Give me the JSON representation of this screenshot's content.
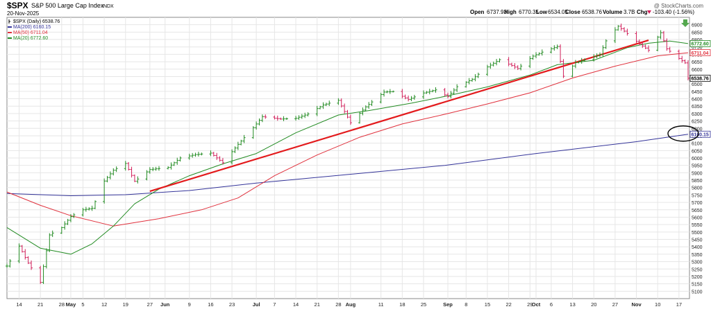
{
  "header": {
    "symbol": "$SPX",
    "name": "S&P 500 Large Cap Index",
    "exchange": "INDX",
    "date": "20-Nov-2025",
    "copyright": "@ StockCharts.com",
    "ohlc": {
      "open_label": "Open",
      "open": "6737.93",
      "high_label": "High",
      "high": "6770.35",
      "low_label": "Low",
      "low": "6534.05",
      "close_label": "Close",
      "close": "6538.76",
      "volume_label": "Volume",
      "volume": "3.7B",
      "chg_label": "Chg",
      "chg": "-103.40 (-1.56%)",
      "chg_icon": "down-triangle"
    }
  },
  "legend": [
    {
      "label": "$SPX (Daily) 6538.76",
      "color": "#000000",
      "icon": "bar-icon"
    },
    {
      "label": "MA(200) 6160.15",
      "color": "#333399"
    },
    {
      "label": "MA(50) 6711.04",
      "color": "#e0303c"
    },
    {
      "label": "MA(20) 6772.60",
      "color": "#228b22"
    }
  ],
  "price_tags": [
    {
      "value": 6772.6,
      "text": "6772.60",
      "color": "#228b22"
    },
    {
      "value": 6711.04,
      "text": "6711.04",
      "color": "#e0303c"
    },
    {
      "value": 6538.76,
      "text": "6538.76",
      "color": "#000000"
    },
    {
      "value": 6160.15,
      "text": "6160.15",
      "color": "#333399"
    }
  ],
  "colors": {
    "up": "#228b22",
    "down": "#d11f5a",
    "ma200": "#333399",
    "ma50": "#e0303c",
    "ma20": "#228b22",
    "trend": "#e31a1c",
    "grid": "#e6e6e6",
    "arrow": "#55a84f"
  },
  "chart_data": {
    "type": "line",
    "ylim": [
      5050,
      6950
    ],
    "y_ticks": [
      5100,
      5150,
      5200,
      5250,
      5300,
      5350,
      5400,
      5450,
      5500,
      5550,
      5600,
      5650,
      5700,
      5750,
      5800,
      5850,
      5900,
      5950,
      6000,
      6050,
      6100,
      6150,
      6200,
      6250,
      6300,
      6350,
      6400,
      6450,
      6500,
      6550,
      6600,
      6650,
      6700,
      6750,
      6800,
      6850,
      6900
    ],
    "x_range": [
      "2025-04-10",
      "2025-11-20"
    ],
    "x_ticks": [
      {
        "date": "2025-04-14",
        "label": "14"
      },
      {
        "date": "2025-04-21",
        "label": "21"
      },
      {
        "date": "2025-04-28",
        "label": "28"
      },
      {
        "date": "2025-05-01",
        "label": "May",
        "bold": true
      },
      {
        "date": "2025-05-05",
        "label": "5"
      },
      {
        "date": "2025-05-12",
        "label": "12"
      },
      {
        "date": "2025-05-19",
        "label": "19"
      },
      {
        "date": "2025-05-27",
        "label": "27"
      },
      {
        "date": "2025-06-01",
        "label": "Jun",
        "bold": true
      },
      {
        "date": "2025-06-09",
        "label": "9"
      },
      {
        "date": "2025-06-16",
        "label": "16"
      },
      {
        "date": "2025-06-23",
        "label": "23"
      },
      {
        "date": "2025-07-01",
        "label": "Jul",
        "bold": true
      },
      {
        "date": "2025-07-07",
        "label": "7"
      },
      {
        "date": "2025-07-14",
        "label": "14"
      },
      {
        "date": "2025-07-21",
        "label": "21"
      },
      {
        "date": "2025-07-28",
        "label": "28"
      },
      {
        "date": "2025-08-01",
        "label": "Aug",
        "bold": true
      },
      {
        "date": "2025-08-11",
        "label": "11"
      },
      {
        "date": "2025-08-18",
        "label": "18"
      },
      {
        "date": "2025-08-25",
        "label": "25"
      },
      {
        "date": "2025-09-02",
        "label": "Sep",
        "bold": true
      },
      {
        "date": "2025-09-08",
        "label": "8"
      },
      {
        "date": "2025-09-15",
        "label": "15"
      },
      {
        "date": "2025-09-22",
        "label": "22"
      },
      {
        "date": "2025-09-29",
        "label": "29"
      },
      {
        "date": "2025-10-01",
        "label": "Oct",
        "bold": true
      },
      {
        "date": "2025-10-06",
        "label": "6"
      },
      {
        "date": "2025-10-13",
        "label": "13"
      },
      {
        "date": "2025-10-20",
        "label": "20"
      },
      {
        "date": "2025-10-27",
        "label": "27"
      },
      {
        "date": "2025-11-03",
        "label": "Nov",
        "bold": true
      },
      {
        "date": "2025-11-10",
        "label": "10"
      },
      {
        "date": "2025-11-17",
        "label": "17"
      }
    ],
    "price": [
      [
        "2025-04-10",
        5270
      ],
      [
        "2025-04-14",
        5405
      ],
      [
        "2025-04-17",
        5290
      ],
      [
        "2025-04-21",
        5160
      ],
      [
        "2025-04-24",
        5480
      ],
      [
        "2025-04-28",
        5530
      ],
      [
        "2025-05-01",
        5604
      ],
      [
        "2025-05-05",
        5650
      ],
      [
        "2025-05-08",
        5660
      ],
      [
        "2025-05-12",
        5844
      ],
      [
        "2025-05-15",
        5917
      ],
      [
        "2025-05-19",
        5963
      ],
      [
        "2025-05-22",
        5842
      ],
      [
        "2025-05-27",
        5922
      ],
      [
        "2025-06-02",
        5936
      ],
      [
        "2025-06-06",
        6000
      ],
      [
        "2025-06-11",
        6023
      ],
      [
        "2025-06-16",
        6033
      ],
      [
        "2025-06-20",
        5968
      ],
      [
        "2025-06-25",
        6092
      ],
      [
        "2025-06-30",
        6205
      ],
      [
        "2025-07-03",
        6279
      ],
      [
        "2025-07-09",
        6263
      ],
      [
        "2025-07-14",
        6268
      ],
      [
        "2025-07-18",
        6297
      ],
      [
        "2025-07-23",
        6358
      ],
      [
        "2025-07-28",
        6389
      ],
      [
        "2025-08-01",
        6238
      ],
      [
        "2025-08-06",
        6345
      ],
      [
        "2025-08-12",
        6445
      ],
      [
        "2025-08-15",
        6449
      ],
      [
        "2025-08-20",
        6395
      ],
      [
        "2025-08-25",
        6439
      ],
      [
        "2025-08-29",
        6460
      ],
      [
        "2025-09-02",
        6415
      ],
      [
        "2025-09-05",
        6481
      ],
      [
        "2025-09-10",
        6532
      ],
      [
        "2025-09-15",
        6615
      ],
      [
        "2025-09-19",
        6664
      ],
      [
        "2025-09-25",
        6604
      ],
      [
        "2025-09-30",
        6688
      ],
      [
        "2025-10-03",
        6715
      ],
      [
        "2025-10-08",
        6753
      ],
      [
        "2025-10-10",
        6552
      ],
      [
        "2025-10-14",
        6644
      ],
      [
        "2025-10-17",
        6664
      ],
      [
        "2025-10-22",
        6699
      ],
      [
        "2025-10-24",
        6791
      ],
      [
        "2025-10-28",
        6890
      ],
      [
        "2025-10-31",
        6840
      ],
      [
        "2025-11-04",
        6771
      ],
      [
        "2025-11-07",
        6728
      ],
      [
        "2025-11-11",
        6846
      ],
      [
        "2025-11-13",
        6737
      ],
      [
        "2025-11-17",
        6672
      ],
      [
        "2025-11-19",
        6642
      ],
      [
        "2025-11-20",
        6538.76
      ]
    ],
    "ma20": [
      [
        "2025-04-10",
        5530
      ],
      [
        "2025-04-21",
        5390
      ],
      [
        "2025-05-01",
        5350
      ],
      [
        "2025-05-08",
        5420
      ],
      [
        "2025-05-15",
        5540
      ],
      [
        "2025-05-22",
        5690
      ],
      [
        "2025-05-30",
        5790
      ],
      [
        "2025-06-09",
        5880
      ],
      [
        "2025-06-20",
        5960
      ],
      [
        "2025-07-01",
        6030
      ],
      [
        "2025-07-14",
        6170
      ],
      [
        "2025-07-28",
        6290
      ],
      [
        "2025-08-07",
        6320
      ],
      [
        "2025-08-21",
        6370
      ],
      [
        "2025-09-02",
        6420
      ],
      [
        "2025-09-15",
        6480
      ],
      [
        "2025-09-29",
        6560
      ],
      [
        "2025-10-08",
        6630
      ],
      [
        "2025-10-20",
        6660
      ],
      [
        "2025-10-31",
        6745
      ],
      [
        "2025-11-07",
        6775
      ],
      [
        "2025-11-14",
        6790
      ],
      [
        "2025-11-20",
        6772.6
      ]
    ],
    "ma50": [
      [
        "2025-04-10",
        5770
      ],
      [
        "2025-04-21",
        5680
      ],
      [
        "2025-05-01",
        5610
      ],
      [
        "2025-05-15",
        5540
      ],
      [
        "2025-05-30",
        5590
      ],
      [
        "2025-06-13",
        5650
      ],
      [
        "2025-06-25",
        5730
      ],
      [
        "2025-07-07",
        5880
      ],
      [
        "2025-07-21",
        6020
      ],
      [
        "2025-08-04",
        6140
      ],
      [
        "2025-08-18",
        6230
      ],
      [
        "2025-09-02",
        6300
      ],
      [
        "2025-09-15",
        6365
      ],
      [
        "2025-09-29",
        6440
      ],
      [
        "2025-10-13",
        6540
      ],
      [
        "2025-10-27",
        6620
      ],
      [
        "2025-11-10",
        6690
      ],
      [
        "2025-11-20",
        6711.04
      ]
    ],
    "ma200": [
      [
        "2025-04-10",
        5760
      ],
      [
        "2025-05-01",
        5745
      ],
      [
        "2025-05-19",
        5752
      ],
      [
        "2025-06-09",
        5780
      ],
      [
        "2025-07-01",
        5830
      ],
      [
        "2025-08-01",
        5890
      ],
      [
        "2025-09-01",
        5950
      ],
      [
        "2025-10-01",
        6030
      ],
      [
        "2025-11-03",
        6110
      ],
      [
        "2025-11-20",
        6160.15
      ]
    ],
    "trendline": [
      [
        "2025-05-27",
        5775
      ],
      [
        "2025-11-07",
        6795
      ]
    ]
  }
}
